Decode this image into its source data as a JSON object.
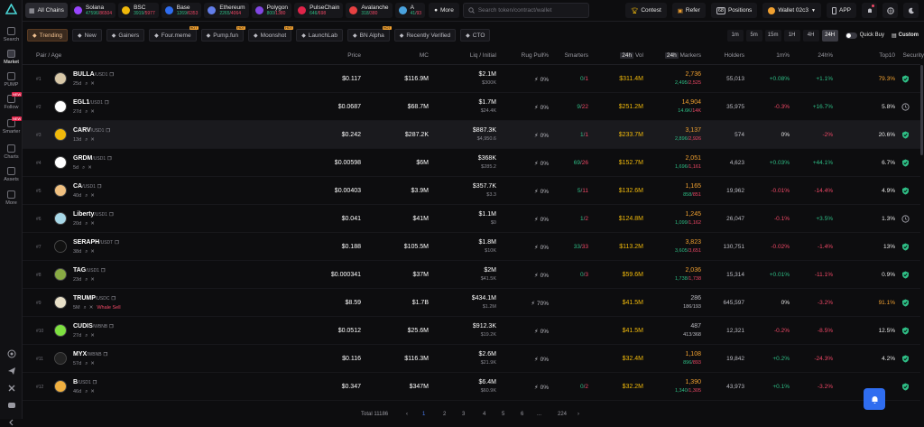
{
  "sidebar": {
    "items": [
      {
        "label": "Search",
        "icon": "search-icon"
      },
      {
        "label": "Market",
        "icon": "market-icon"
      },
      {
        "label": "PUMP",
        "icon": "pump-icon"
      },
      {
        "label": "Follow",
        "icon": "follow-icon",
        "badge": "NEW"
      },
      {
        "label": "Smarter",
        "icon": "smarter-icon",
        "badge": "NEW"
      },
      {
        "label": "Charts",
        "icon": "charts-icon"
      },
      {
        "label": "Assets",
        "icon": "assets-icon"
      },
      {
        "label": "More",
        "icon": "more-icon"
      }
    ]
  },
  "topbar": {
    "all_chains": "All Chains",
    "chains": [
      {
        "name": "Solana",
        "up": "47596",
        "down": "86504",
        "color": "#9945ff"
      },
      {
        "name": "BSC",
        "up": "3919",
        "down": "5977",
        "color": "#f0b90b"
      },
      {
        "name": "Base",
        "up": "1269",
        "down": "6353",
        "color": "#2f6df0"
      },
      {
        "name": "Ethereum",
        "up": "2265",
        "down": "4064",
        "color": "#627eea"
      },
      {
        "name": "Polygon",
        "up": "800",
        "down": "1380",
        "color": "#8247e5"
      },
      {
        "name": "PulseChain",
        "up": "646",
        "down": "698",
        "color": "#e0244a"
      },
      {
        "name": "Avalanche",
        "up": "318",
        "down": "380",
        "color": "#e84142"
      },
      {
        "name": "A",
        "up": "41",
        "down": "93",
        "color": "#4aa3df"
      }
    ],
    "more": "More",
    "search_placeholder": "Search token/contract/wallet",
    "contest": "Contest",
    "refer": "Refer",
    "positions_count": "68",
    "positions": "Positions",
    "wallet": "Wallet 02c3",
    "app": "APP"
  },
  "filters": {
    "tabs": [
      {
        "label": "Trending",
        "active": true
      },
      {
        "label": "New"
      },
      {
        "label": "Gainers"
      },
      {
        "label": "Four.meme",
        "hot": "HOT"
      },
      {
        "label": "Pump.fun",
        "hot": "HOT"
      },
      {
        "label": "Moonshot",
        "hot": "HOT"
      },
      {
        "label": "LaunchLab"
      },
      {
        "label": "BN Alpha",
        "hot": "HOT"
      },
      {
        "label": "Recently Verified"
      },
      {
        "label": "CTO"
      }
    ],
    "timeframes": [
      "1m",
      "5m",
      "15m",
      "1H",
      "4H",
      "24H"
    ],
    "active_timeframe": "24H",
    "quick_buy": "Quick Buy",
    "custom": "Custom"
  },
  "table": {
    "headers": {
      "pair": "Pair / Age",
      "price": "Price",
      "mc": "MC",
      "liq": "Liq / Initial",
      "rug": "Rug Pull%",
      "smarters": "Smarters",
      "vol_tf": "24h",
      "vol": "Vol",
      "mk_tf": "24h",
      "mk": "Markers",
      "holders": "Holders",
      "m1": "1m%",
      "h24": "24h%",
      "top10": "Top10",
      "security": "Security"
    },
    "rows": [
      {
        "idx": "#1",
        "name": "BULLA",
        "pair": "/USD1",
        "age": "25d",
        "price": "$0.117",
        "mc": "$116.9M",
        "liq": "$2.1M",
        "init": "$300K",
        "rug": "0%",
        "sm_g": "0",
        "sm_r": "1",
        "vol": "$311.4M",
        "mk": "2,736",
        "mk_g": "2,495",
        "mk_r": "2,525",
        "holders": "55,013",
        "m1": "+0.08%",
        "m1c": "g",
        "h24": "+1.1%",
        "h24c": "g",
        "top": "79.3%",
        "topc": "o",
        "sec": "ok",
        "avatar": "#d8c8a8"
      },
      {
        "idx": "#2",
        "name": "EGL1",
        "pair": "/USD1",
        "age": "27d",
        "price": "$0.0687",
        "mc": "$68.7M",
        "liq": "$1.7M",
        "init": "$24.4K",
        "rug": "0%",
        "sm_g": "9",
        "sm_r": "22",
        "vol": "$251.2M",
        "mk": "14,904",
        "mk_g": "14.6K",
        "mk_r": "14K",
        "holders": "35,975",
        "m1": "-0.3%",
        "m1c": "r",
        "h24": "+16.7%",
        "h24c": "g",
        "top": "5.8%",
        "topc": "w",
        "sec": "clock",
        "avatar": "#ffffff"
      },
      {
        "idx": "#3",
        "name": "CARV",
        "pair": "/USD1",
        "age": "13d",
        "price": "$0.242",
        "mc": "$287.2K",
        "liq": "$887.3K",
        "init": "$4,950.6",
        "rug": "0%",
        "sm_g": "1",
        "sm_r": "1",
        "vol": "$233.7M",
        "mk": "3,137",
        "mk_g": "2,896",
        "mk_r": "2,926",
        "holders": "574",
        "m1": "0%",
        "m1c": "w",
        "h24": "-2%",
        "h24c": "r",
        "top": "20.6%",
        "topc": "w",
        "sec": "ok",
        "avatar": "#f0b90b"
      },
      {
        "idx": "#4",
        "name": "GRDM",
        "pair": "/USD1",
        "age": "5d",
        "price": "$0.00598",
        "mc": "$6M",
        "liq": "$368K",
        "init": "$285.2",
        "rug": "0%",
        "sm_g": "69",
        "sm_r": "26",
        "vol": "$152.7M",
        "mk": "2,051",
        "mk_g": "1,696",
        "mk_r": "1,161",
        "holders": "4,623",
        "m1": "+0.03%",
        "m1c": "g",
        "h24": "+44.1%",
        "h24c": "g",
        "top": "6.7%",
        "topc": "w",
        "sec": "ok",
        "avatar": "#ffffff"
      },
      {
        "idx": "#5",
        "name": "CA",
        "pair": "/USD1",
        "age": "40d",
        "price": "$0.00403",
        "mc": "$3.9M",
        "liq": "$357.7K",
        "init": "$3.3",
        "rug": "0%",
        "sm_g": "5",
        "sm_r": "11",
        "vol": "$132.6M",
        "mk": "1,165",
        "mk_g": "858",
        "mk_r": "851",
        "holders": "19,962",
        "m1": "-0.01%",
        "m1c": "r",
        "h24": "-14.4%",
        "h24c": "r",
        "top": "4.9%",
        "topc": "w",
        "sec": "ok",
        "avatar": "#f0c080"
      },
      {
        "idx": "#6",
        "name": "Liberty",
        "pair": "/USD1",
        "age": "20d",
        "price": "$0.041",
        "mc": "$41M",
        "liq": "$1.1M",
        "init": "$0",
        "rug": "0%",
        "sm_g": "1",
        "sm_r": "2",
        "vol": "$124.8M",
        "mk": "1,245",
        "mk_g": "1,099",
        "mk_r": "1,162",
        "holders": "26,047",
        "m1": "-0.1%",
        "m1c": "r",
        "h24": "+3.5%",
        "h24c": "g",
        "top": "1.3%",
        "topc": "w",
        "sec": "moon",
        "avatar": "#a8d8e8"
      },
      {
        "idx": "#7",
        "name": "SERAPH",
        "pair": "/USDT",
        "age": "38d",
        "price": "$0.188",
        "mc": "$105.5M",
        "liq": "$1.8M",
        "init": "$10K",
        "rug": "0%",
        "sm_g": "33",
        "sm_r": "33",
        "vol": "$113.2M",
        "mk": "3,823",
        "mk_g": "3,605",
        "mk_r": "3,651",
        "holders": "130,751",
        "m1": "-0.02%",
        "m1c": "r",
        "h24": "-1.4%",
        "h24c": "r",
        "top": "13%",
        "topc": "w",
        "sec": "ok",
        "avatar": "#111111"
      },
      {
        "idx": "#8",
        "name": "TAG",
        "pair": "/USD1",
        "age": "23d",
        "price": "$0.000341",
        "mc": "$37M",
        "liq": "$2M",
        "init": "$41.5K",
        "rug": "0%",
        "sm_g": "0",
        "sm_r": "3",
        "vol": "$59.6M",
        "mk": "2,036",
        "mk_g": "1,738",
        "mk_r": "1,738",
        "holders": "15,314",
        "m1": "+0.01%",
        "m1c": "g",
        "h24": "-11.1%",
        "h24c": "r",
        "top": "0.9%",
        "topc": "w",
        "sec": "ok",
        "avatar": "#88aa44"
      },
      {
        "idx": "#9",
        "name": "TRUMP",
        "pair": "/USDC",
        "age": "5M",
        "warn": "Whale Sell",
        "price": "$8.59",
        "mc": "$1.7B",
        "liq": "$434.1M",
        "init": "$1.2M",
        "rug": "70%",
        "rugc": "r",
        "sm_g": "",
        "sm_r": "",
        "vol": "$41.5M",
        "mk": "286",
        "mk_g": "186",
        "mk_r": "193",
        "mkw": true,
        "holders": "645,597",
        "m1": "0%",
        "m1c": "w",
        "h24": "-3.2%",
        "h24c": "r",
        "top": "91.1%",
        "topc": "o",
        "sec": "ok",
        "avatar": "#e8e0c8"
      },
      {
        "idx": "#10",
        "name": "CUDIS",
        "pair": "/WBNB",
        "age": "27d",
        "price": "$0.0512",
        "mc": "$25.6M",
        "liq": "$912.3K",
        "init": "$19.2K",
        "rug": "0%",
        "sm_g": "",
        "sm_r": "",
        "vol": "$41.5M",
        "mk": "487",
        "mk_g": "413",
        "mk_r": "368",
        "mkw": true,
        "holders": "12,321",
        "m1": "-0.2%",
        "m1c": "r",
        "h24": "-8.5%",
        "h24c": "r",
        "top": "12.5%",
        "topc": "w",
        "sec": "ok",
        "avatar": "#7ee040"
      },
      {
        "idx": "#11",
        "name": "MYX",
        "pair": "/WBNB",
        "age": "57d",
        "price": "$0.116",
        "mc": "$116.3M",
        "liq": "$2.6M",
        "init": "$21.9K",
        "rug": "0%",
        "sm_g": "",
        "sm_r": "",
        "vol": "$32.4M",
        "mk": "1,108",
        "mk_g": "896",
        "mk_r": "893",
        "holders": "19,842",
        "m1": "+0.2%",
        "m1c": "g",
        "h24": "-24.3%",
        "h24c": "r",
        "top": "4.2%",
        "topc": "w",
        "sec": "ok",
        "avatar": "#222222"
      },
      {
        "idx": "#12",
        "name": "B",
        "pair": "/USD1",
        "age": "46d",
        "price": "$0.347",
        "mc": "$347M",
        "liq": "$6.4M",
        "init": "$60.9K",
        "rug": "0%",
        "sm_g": "0",
        "sm_r": "2",
        "vol": "$32.2M",
        "mk": "1,390",
        "mk_g": "1,340",
        "mk_r": "1,305",
        "holders": "43,973",
        "m1": "+0.1%",
        "m1c": "g",
        "h24": "-3.2%",
        "h24c": "r",
        "top": "",
        "topc": "w",
        "sec": "ok",
        "avatar": "#f0b040"
      }
    ]
  },
  "footer": {
    "total": "Total 11186",
    "pages": [
      "1",
      "2",
      "3",
      "4",
      "5",
      "6",
      "...",
      "224"
    ]
  },
  "colors": {
    "accent": "#f0a030",
    "green": "#2ebd85",
    "red": "#f04866",
    "blue": "#2f6df0"
  }
}
